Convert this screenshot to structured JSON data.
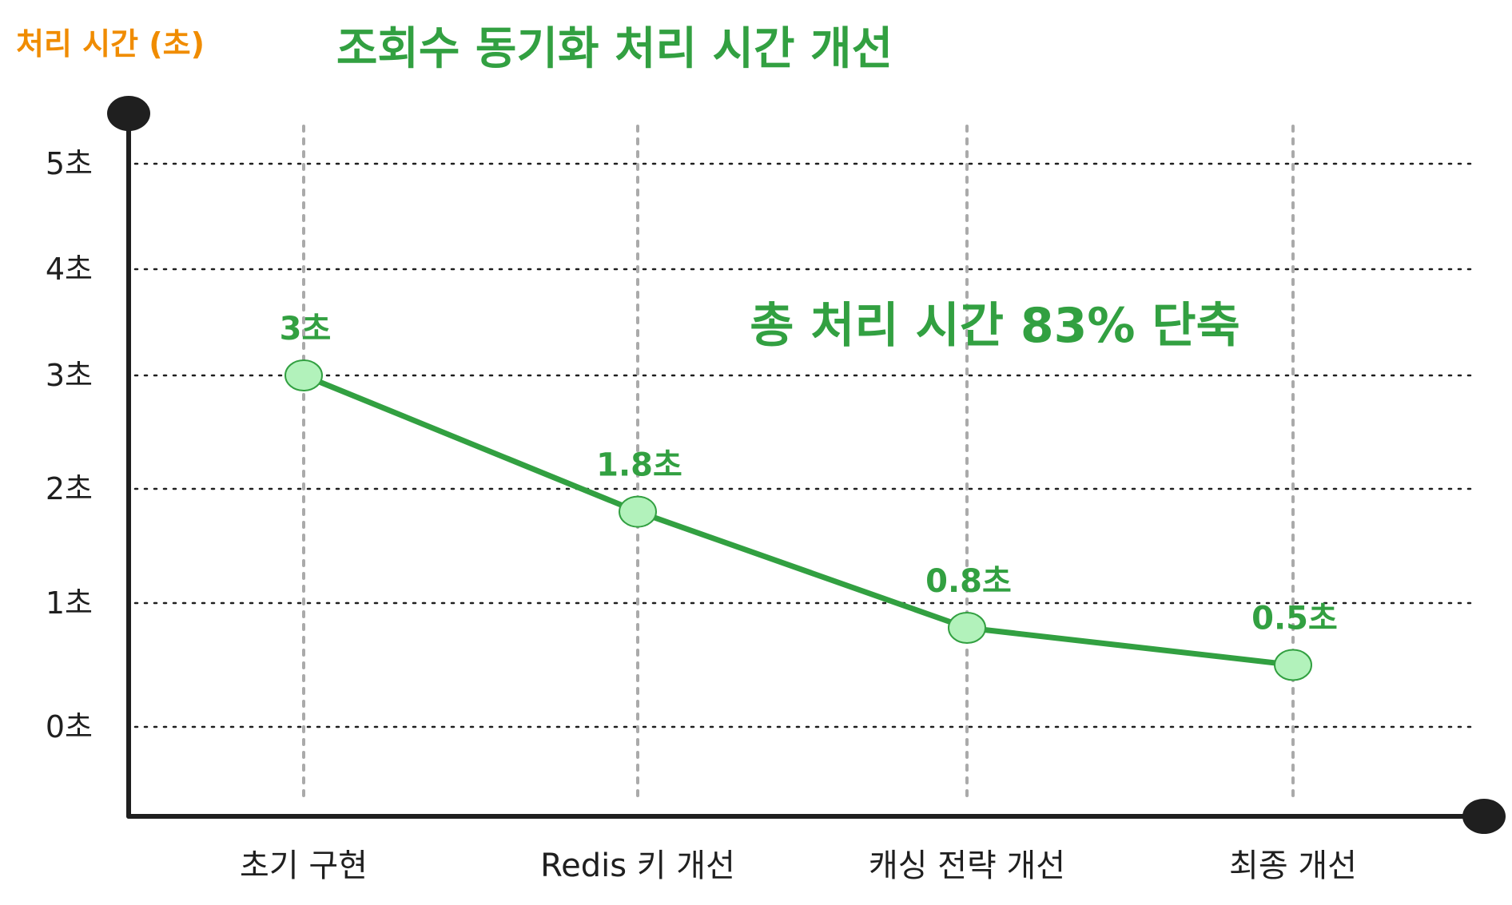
{
  "colors": {
    "line": "#32a041",
    "title": "#32a041",
    "ylabel": "#f08c00",
    "point_fill": "#b2f2bb",
    "axis": "#1f1f1f",
    "grid": "#1f1f1f",
    "vgrid": "#aaaaaa"
  },
  "chart_data": {
    "type": "line",
    "title": "조회수 동기화 처리 시간 개선",
    "ylabel": "처리 시간 (초)",
    "xlabel": "",
    "annotation": "총 처리 시간 83% 단축",
    "categories": [
      "초기 구현",
      "Redis 키 개선",
      "캐싱 전략 개선",
      "최종 개선"
    ],
    "series": [
      {
        "values": [
          3,
          1.8,
          0.8,
          0.5
        ]
      }
    ],
    "data_labels": [
      "3초",
      "1.8초",
      "0.8초",
      "0.5초"
    ],
    "y_ticks": [
      {
        "value": 0,
        "label": "0초"
      },
      {
        "value": 1,
        "label": "1초"
      },
      {
        "value": 2,
        "label": "2초"
      },
      {
        "value": 3,
        "label": "3초"
      },
      {
        "value": 4,
        "label": "4초"
      },
      {
        "value": 5,
        "label": "5초"
      }
    ],
    "grid": true,
    "legend": "none"
  }
}
